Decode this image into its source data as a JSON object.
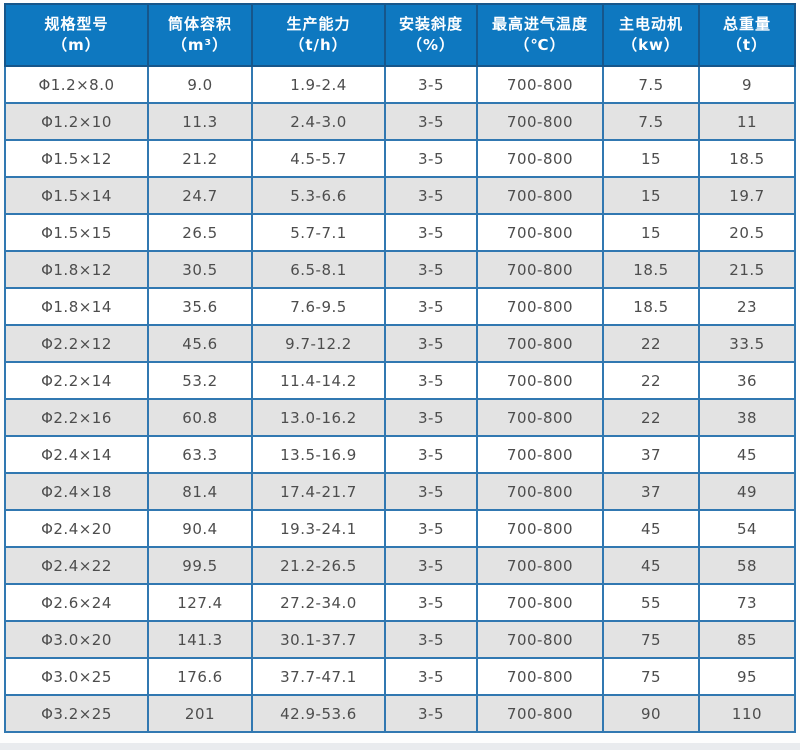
{
  "table": {
    "columns": [
      {
        "title": "规格型号",
        "unit": "（m）"
      },
      {
        "title": "筒体容积",
        "unit": "（m³）"
      },
      {
        "title": "生产能力",
        "unit": "（t/h）"
      },
      {
        "title": "安装斜度",
        "unit": "（%）"
      },
      {
        "title": "最高进气温度",
        "unit": "（℃）"
      },
      {
        "title": "主电动机",
        "unit": "（kw）"
      },
      {
        "title": "总重量",
        "unit": "（t）"
      }
    ],
    "rows": [
      [
        "Φ1.2×8.0",
        "9.0",
        "1.9-2.4",
        "3-5",
        "700-800",
        "7.5",
        "9"
      ],
      [
        "Φ1.2×10",
        "11.3",
        "2.4-3.0",
        "3-5",
        "700-800",
        "7.5",
        "11"
      ],
      [
        "Φ1.5×12",
        "21.2",
        "4.5-5.7",
        "3-5",
        "700-800",
        "15",
        "18.5"
      ],
      [
        "Φ1.5×14",
        "24.7",
        "5.3-6.6",
        "3-5",
        "700-800",
        "15",
        "19.7"
      ],
      [
        "Φ1.5×15",
        "26.5",
        "5.7-7.1",
        "3-5",
        "700-800",
        "15",
        "20.5"
      ],
      [
        "Φ1.8×12",
        "30.5",
        "6.5-8.1",
        "3-5",
        "700-800",
        "18.5",
        "21.5"
      ],
      [
        "Φ1.8×14",
        "35.6",
        "7.6-9.5",
        "3-5",
        "700-800",
        "18.5",
        "23"
      ],
      [
        "Φ2.2×12",
        "45.6",
        "9.7-12.2",
        "3-5",
        "700-800",
        "22",
        "33.5"
      ],
      [
        "Φ2.2×14",
        "53.2",
        "11.4-14.2",
        "3-5",
        "700-800",
        "22",
        "36"
      ],
      [
        "Φ2.2×16",
        "60.8",
        "13.0-16.2",
        "3-5",
        "700-800",
        "22",
        "38"
      ],
      [
        "Φ2.4×14",
        "63.3",
        "13.5-16.9",
        "3-5",
        "700-800",
        "37",
        "45"
      ],
      [
        "Φ2.4×18",
        "81.4",
        "17.4-21.7",
        "3-5",
        "700-800",
        "37",
        "49"
      ],
      [
        "Φ2.4×20",
        "90.4",
        "19.3-24.1",
        "3-5",
        "700-800",
        "45",
        "54"
      ],
      [
        "Φ2.4×22",
        "99.5",
        "21.2-26.5",
        "3-5",
        "700-800",
        "45",
        "58"
      ],
      [
        "Φ2.6×24",
        "127.4",
        "27.2-34.0",
        "3-5",
        "700-800",
        "55",
        "73"
      ],
      [
        "Φ3.0×20",
        "141.3",
        "30.1-37.7",
        "3-5",
        "700-800",
        "75",
        "85"
      ],
      [
        "Φ3.0×25",
        "176.6",
        "37.7-47.1",
        "3-5",
        "700-800",
        "75",
        "95"
      ],
      [
        "Φ3.2×25",
        "201",
        "42.9-53.6",
        "3-5",
        "700-800",
        "90",
        "110"
      ]
    ]
  },
  "colors": {
    "header_bg": "#0e78c0",
    "header_text": "#ffffff",
    "outer_border": "#1b5c90",
    "inner_border": "#3178b1",
    "row_bg": "#ffffff",
    "row_alt_bg": "#e3e3e3",
    "cell_text": "#4d4d4d"
  },
  "chart_data": {
    "type": "table",
    "title": "",
    "columns": [
      "规格型号（m）",
      "筒体容积（m³）",
      "生产能力（t/h）",
      "安装斜度（%）",
      "最高进气温度（℃）",
      "主电动机（kw）",
      "总重量（t）"
    ],
    "rows": [
      [
        "Φ1.2×8.0",
        "9.0",
        "1.9-2.4",
        "3-5",
        "700-800",
        "7.5",
        "9"
      ],
      [
        "Φ1.2×10",
        "11.3",
        "2.4-3.0",
        "3-5",
        "700-800",
        "7.5",
        "11"
      ],
      [
        "Φ1.5×12",
        "21.2",
        "4.5-5.7",
        "3-5",
        "700-800",
        "15",
        "18.5"
      ],
      [
        "Φ1.5×14",
        "24.7",
        "5.3-6.6",
        "3-5",
        "700-800",
        "15",
        "19.7"
      ],
      [
        "Φ1.5×15",
        "26.5",
        "5.7-7.1",
        "3-5",
        "700-800",
        "15",
        "20.5"
      ],
      [
        "Φ1.8×12",
        "30.5",
        "6.5-8.1",
        "3-5",
        "700-800",
        "18.5",
        "21.5"
      ],
      [
        "Φ1.8×14",
        "35.6",
        "7.6-9.5",
        "3-5",
        "700-800",
        "18.5",
        "23"
      ],
      [
        "Φ2.2×12",
        "45.6",
        "9.7-12.2",
        "3-5",
        "700-800",
        "22",
        "33.5"
      ],
      [
        "Φ2.2×14",
        "53.2",
        "11.4-14.2",
        "3-5",
        "700-800",
        "22",
        "36"
      ],
      [
        "Φ2.2×16",
        "60.8",
        "13.0-16.2",
        "3-5",
        "700-800",
        "22",
        "38"
      ],
      [
        "Φ2.4×14",
        "63.3",
        "13.5-16.9",
        "3-5",
        "700-800",
        "37",
        "45"
      ],
      [
        "Φ2.4×18",
        "81.4",
        "17.4-21.7",
        "3-5",
        "700-800",
        "37",
        "49"
      ],
      [
        "Φ2.4×20",
        "90.4",
        "19.3-24.1",
        "3-5",
        "700-800",
        "45",
        "54"
      ],
      [
        "Φ2.4×22",
        "99.5",
        "21.2-26.5",
        "3-5",
        "700-800",
        "45",
        "58"
      ],
      [
        "Φ2.6×24",
        "127.4",
        "27.2-34.0",
        "3-5",
        "700-800",
        "55",
        "73"
      ],
      [
        "Φ3.0×20",
        "141.3",
        "30.1-37.7",
        "3-5",
        "700-800",
        "75",
        "85"
      ],
      [
        "Φ3.0×25",
        "176.6",
        "37.7-47.1",
        "3-5",
        "700-800",
        "75",
        "95"
      ],
      [
        "Φ3.2×25",
        "201",
        "42.9-53.6",
        "3-5",
        "700-800",
        "90",
        "110"
      ]
    ],
    "layout": {
      "striped_rows": true,
      "stripe_start": "white",
      "grid": true,
      "header_position": "top"
    }
  }
}
